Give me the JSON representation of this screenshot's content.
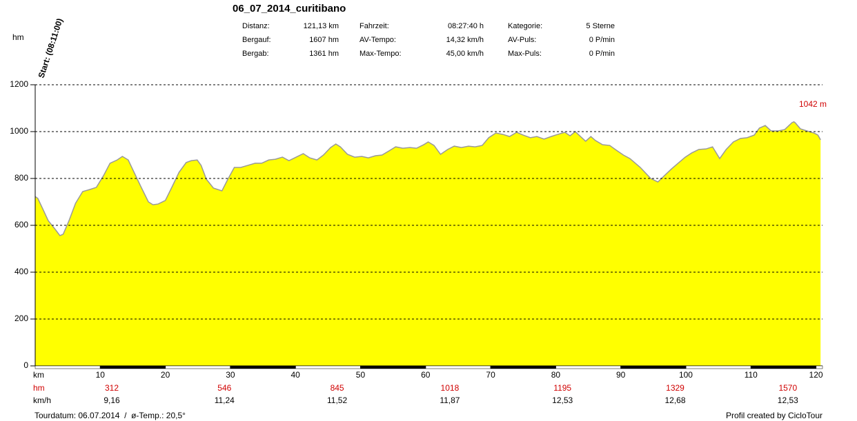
{
  "chart_data": {
    "type": "area",
    "title": "06_07_2014_curitibano",
    "y_label": "hm",
    "x_label": "km",
    "start_label": "Start: (08:11:00)",
    "stats": [
      [
        "Distanz:",
        "121,13 km",
        "Fahrzeit:",
        "08:27:40 h",
        "Kategorie:",
        "5 Sterne"
      ],
      [
        "Bergauf:",
        "1607 hm",
        "AV-Tempo:",
        "14,32 km/h",
        "AV-Puls:",
        "0 P/min"
      ],
      [
        "Bergab:",
        "1361 hm",
        "Max-Tempo:",
        "45,00 km/h",
        "Max-Puls:",
        "0 P/min"
      ]
    ],
    "x": [
      0,
      0.4,
      1.0,
      2.0,
      3.1,
      3.8,
      4.3,
      5.2,
      6.2,
      7.3,
      8.4,
      9.4,
      10.5,
      11.5,
      12.6,
      13.4,
      14.3,
      15.2,
      16.3,
      17.4,
      18.1,
      18.9,
      20.0,
      21.1,
      22.1,
      23.2,
      24.0,
      24.9,
      25.5,
      26.3,
      27.4,
      28.7,
      29.5,
      30.6,
      31.6,
      32.7,
      33.8,
      34.8,
      35.9,
      36.9,
      38.0,
      39.0,
      40.1,
      41.2,
      42.2,
      43.3,
      44.3,
      45.4,
      46.2,
      46.9,
      48.0,
      49.1,
      50.2,
      51.2,
      52.3,
      53.3,
      54.4,
      55.4,
      56.5,
      57.6,
      58.6,
      59.7,
      60.4,
      61.3,
      62.3,
      63.4,
      64.4,
      65.5,
      66.6,
      67.6,
      68.7,
      69.7,
      70.8,
      71.9,
      72.9,
      74.0,
      75.0,
      76.1,
      77.1,
      78.2,
      79.3,
      80.3,
      81.4,
      82.2,
      83.0,
      84.0,
      84.6,
      85.4,
      86.1,
      87.2,
      88.3,
      89.3,
      90.4,
      91.4,
      93.0,
      94.6,
      95.7,
      96.7,
      97.8,
      98.8,
      99.9,
      100.9,
      102.0,
      103.1,
      104.1,
      105.2,
      106.2,
      107.3,
      108.4,
      109.4,
      110.5,
      111.3,
      112.2,
      113.1,
      114.2,
      115.2,
      116.3,
      116.6,
      116.8,
      117.6,
      118.6,
      119.7,
      120.3,
      120.7
    ],
    "values": [
      723,
      715,
      680,
      620,
      582,
      556,
      562,
      620,
      694,
      744,
      753,
      762,
      812,
      865,
      879,
      894,
      879,
      826,
      762,
      700,
      688,
      691,
      706,
      768,
      826,
      868,
      876,
      879,
      856,
      797,
      759,
      747,
      791,
      847,
      847,
      856,
      865,
      865,
      879,
      882,
      891,
      876,
      891,
      906,
      888,
      879,
      900,
      932,
      947,
      935,
      903,
      891,
      894,
      888,
      897,
      900,
      918,
      935,
      929,
      932,
      929,
      944,
      956,
      941,
      903,
      924,
      938,
      932,
      938,
      935,
      941,
      974,
      994,
      988,
      979,
      997,
      985,
      974,
      979,
      968,
      979,
      988,
      997,
      982,
      1000,
      974,
      959,
      979,
      962,
      944,
      941,
      921,
      900,
      885,
      847,
      800,
      785,
      812,
      841,
      865,
      891,
      909,
      924,
      926,
      935,
      885,
      924,
      956,
      971,
      974,
      985,
      1015,
      1026,
      1003,
      1003,
      1009,
      1038,
      1042,
      1038,
      1012,
      1003,
      994,
      985,
      965
    ],
    "color": "#ffff00",
    "line_color": "#999999",
    "xlim": [
      0,
      121
    ],
    "ylim": [
      0,
      1200
    ],
    "xticks": [
      10,
      20,
      30,
      40,
      50,
      60,
      70,
      80,
      90,
      100,
      110,
      120
    ],
    "yticks": [
      0,
      200,
      400,
      600,
      800,
      1000,
      1200
    ],
    "grid": true,
    "max_annotation": {
      "value": 1042,
      "label": "1042 m"
    },
    "hm_row": {
      "label": "hm",
      "values": [
        312,
        546,
        845,
        1018,
        1195,
        1329,
        1570
      ]
    },
    "kmh_row": {
      "label": "km/h",
      "values": [
        "9,16",
        "11,24",
        "11,52",
        "11,87",
        "12,53",
        "12,68",
        "12,53"
      ]
    },
    "footer_left": "Tourdatum: 06.07.2014  /  ø-Temp.: 20,5°",
    "footer_right": "Profil created by CicloTour"
  }
}
